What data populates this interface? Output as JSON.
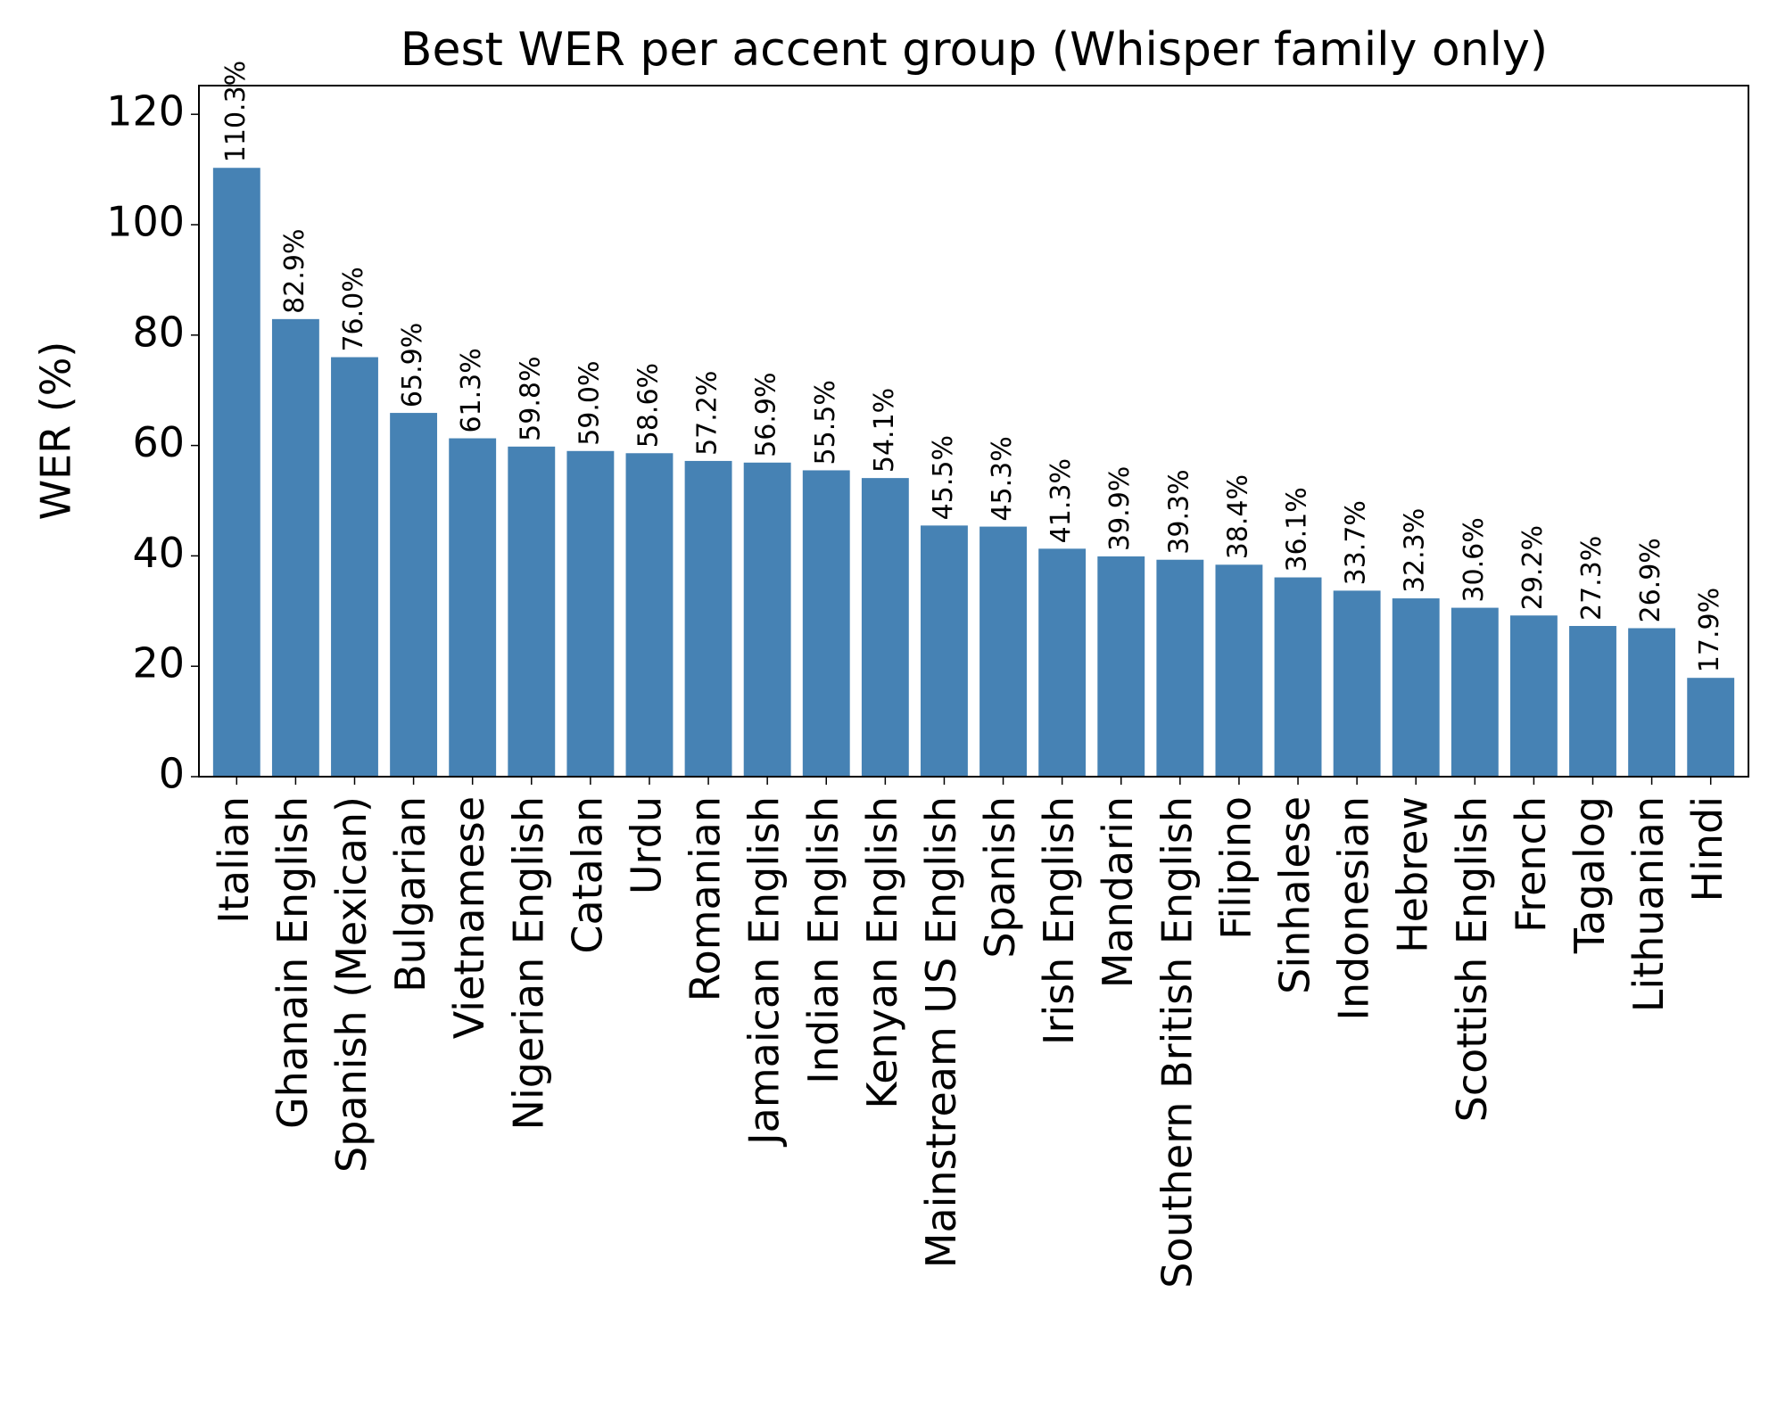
{
  "chart_data": {
    "type": "bar",
    "title": "Best WER per accent group (Whisper family only)",
    "y_label": "WER (%)",
    "categories": [
      "Italian",
      "Ghanain English",
      "Spanish (Mexican)",
      "Bulgarian",
      "Vietnamese",
      "Nigerian English",
      "Catalan",
      "Urdu",
      "Romanian",
      "Jamaican English",
      "Indian English",
      "Kenyan English",
      "Mainstream US English",
      "Spanish",
      "Irish English",
      "Mandarin",
      "Southern British English",
      "Filipino",
      "Sinhalese",
      "Indonesian",
      "Hebrew",
      "Scottish English",
      "French",
      "Tagalog",
      "Lithuanian",
      "Hindi"
    ],
    "values": [
      110.3,
      82.9,
      76.0,
      65.9,
      61.3,
      59.8,
      59.0,
      58.6,
      57.2,
      56.9,
      55.5,
      54.1,
      45.5,
      45.3,
      41.3,
      39.9,
      39.3,
      38.4,
      36.1,
      33.7,
      32.3,
      30.6,
      29.2,
      27.3,
      26.9,
      17.9
    ],
    "value_labels": [
      "110.3%",
      "82.9%",
      "76.0%",
      "65.9%",
      "61.3%",
      "59.8%",
      "59.0%",
      "58.6%",
      "57.2%",
      "56.9%",
      "55.5%",
      "54.1%",
      "45.5%",
      "45.3%",
      "41.3%",
      "39.9%",
      "39.3%",
      "38.4%",
      "36.1%",
      "33.7%",
      "32.3%",
      "30.6%",
      "29.2%",
      "27.3%",
      "26.9%",
      "17.9%"
    ],
    "color": "#4682b4",
    "ylim": [
      0,
      125.2
    ],
    "yticks": [
      0,
      20,
      40,
      60,
      80,
      100,
      120
    ],
    "grid": false
  }
}
